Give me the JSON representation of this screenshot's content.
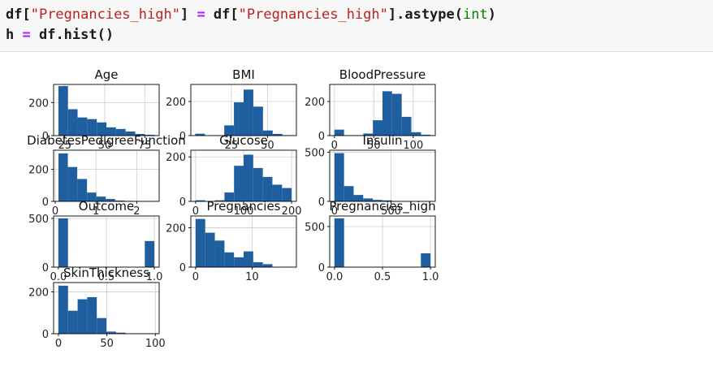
{
  "code_cell": {
    "line1": {
      "lhs_var": "df[",
      "lhs_key": "\"Pregnancies_high\"",
      "lhs_close": "]",
      "op": " = ",
      "rhs_var": "df[",
      "rhs_key": "\"Pregnancies_high\"",
      "rhs_close": "].astype(",
      "rhs_type": "int",
      "rhs_end": ")"
    },
    "line2": {
      "var": "h",
      "op": " = ",
      "call": "df.hist()"
    }
  },
  "colors": {
    "bar": "#1f5fa0",
    "grid": "#cccccc",
    "frame": "#000000"
  },
  "chart_data": [
    {
      "type": "bar",
      "title": "Age",
      "bins": [
        [
          21,
          27,
          300
        ],
        [
          27,
          33,
          160
        ],
        [
          33,
          39,
          110
        ],
        [
          39,
          45,
          100
        ],
        [
          45,
          51,
          80
        ],
        [
          51,
          57,
          50
        ],
        [
          57,
          63,
          40
        ],
        [
          63,
          69,
          25
        ],
        [
          69,
          75,
          10
        ],
        [
          75,
          81,
          5
        ]
      ],
      "xlim": [
        18,
        84
      ],
      "ylim": [
        0,
        310
      ],
      "xticks": [
        {
          "v": 25,
          "l": "25"
        },
        {
          "v": 50,
          "l": "50"
        },
        {
          "v": 75,
          "l": "75"
        }
      ],
      "yticks": [
        {
          "v": 0,
          "l": "0"
        },
        {
          "v": 200,
          "l": "200"
        }
      ]
    },
    {
      "type": "bar",
      "title": "BMI",
      "bins": [
        [
          0,
          6.7,
          11
        ],
        [
          6.7,
          13.4,
          0
        ],
        [
          13.4,
          20.1,
          2
        ],
        [
          20.1,
          26.8,
          60
        ],
        [
          26.8,
          33.5,
          195
        ],
        [
          33.5,
          40.2,
          270
        ],
        [
          40.2,
          46.9,
          170
        ],
        [
          46.9,
          53.6,
          30
        ],
        [
          53.6,
          60.3,
          10
        ],
        [
          60.3,
          67.1,
          2
        ]
      ],
      "xlim": [
        -3,
        70
      ],
      "ylim": [
        0,
        300
      ],
      "xticks": [
        {
          "v": 25,
          "l": "25"
        },
        {
          "v": 50,
          "l": "50"
        }
      ],
      "yticks": [
        {
          "v": 0,
          "l": "0"
        },
        {
          "v": 200,
          "l": "200"
        }
      ]
    },
    {
      "type": "bar",
      "title": "BloodPressure",
      "bins": [
        [
          0,
          12.2,
          35
        ],
        [
          12.2,
          24.4,
          1
        ],
        [
          24.4,
          36.6,
          2
        ],
        [
          36.6,
          48.8,
          12
        ],
        [
          48.8,
          61,
          90
        ],
        [
          61,
          73.2,
          260
        ],
        [
          73.2,
          85.4,
          245
        ],
        [
          85.4,
          97.6,
          110
        ],
        [
          97.6,
          109.8,
          20
        ],
        [
          109.8,
          122,
          5
        ]
      ],
      "xlim": [
        -6,
        128
      ],
      "ylim": [
        0,
        300
      ],
      "xticks": [
        {
          "v": 0,
          "l": "0"
        },
        {
          "v": 50,
          "l": "50"
        },
        {
          "v": 100,
          "l": "100"
        }
      ],
      "yticks": [
        {
          "v": 0,
          "l": "0"
        },
        {
          "v": 200,
          "l": "200"
        }
      ]
    },
    {
      "type": "bar",
      "title": "DiabetesPedigreeFunction",
      "bins": [
        [
          0.08,
          0.31,
          300
        ],
        [
          0.31,
          0.54,
          215
        ],
        [
          0.54,
          0.78,
          140
        ],
        [
          0.78,
          1.01,
          55
        ],
        [
          1.01,
          1.24,
          30
        ],
        [
          1.24,
          1.47,
          15
        ],
        [
          1.47,
          1.7,
          5
        ],
        [
          1.7,
          1.94,
          3
        ],
        [
          1.94,
          2.17,
          2
        ],
        [
          2.17,
          2.42,
          2
        ]
      ],
      "xlim": [
        -0.04,
        2.55
      ],
      "ylim": [
        0,
        320
      ],
      "xticks": [
        {
          "v": 0,
          "l": "0"
        },
        {
          "v": 1,
          "l": "1"
        },
        {
          "v": 2,
          "l": "2"
        }
      ],
      "yticks": [
        {
          "v": 0,
          "l": "0"
        },
        {
          "v": 200,
          "l": "200"
        }
      ]
    },
    {
      "type": "bar",
      "title": "Glucose",
      "bins": [
        [
          0,
          20,
          5
        ],
        [
          20,
          40,
          0
        ],
        [
          40,
          60,
          5
        ],
        [
          60,
          80,
          40
        ],
        [
          80,
          100,
          160
        ],
        [
          100,
          120,
          210
        ],
        [
          120,
          140,
          150
        ],
        [
          140,
          160,
          110
        ],
        [
          160,
          180,
          75
        ],
        [
          180,
          200,
          60
        ]
      ],
      "xlim": [
        -10,
        210
      ],
      "ylim": [
        0,
        230
      ],
      "xticks": [
        {
          "v": 0,
          "l": "0"
        },
        {
          "v": 100,
          "l": "100"
        },
        {
          "v": 200,
          "l": "200"
        }
      ],
      "yticks": [
        {
          "v": 0,
          "l": "0"
        },
        {
          "v": 200,
          "l": "200"
        }
      ]
    },
    {
      "type": "bar",
      "title": "Insulin",
      "bins": [
        [
          0,
          84.6,
          490
        ],
        [
          84.6,
          169.2,
          155
        ],
        [
          169.2,
          253.8,
          65
        ],
        [
          253.8,
          338.4,
          30
        ],
        [
          338.4,
          423,
          15
        ],
        [
          423,
          507.6,
          10
        ],
        [
          507.6,
          592.2,
          3
        ],
        [
          592.2,
          676.8,
          2
        ],
        [
          676.8,
          761.4,
          1
        ],
        [
          761.4,
          846,
          1
        ]
      ],
      "xlim": [
        -42,
        890
      ],
      "ylim": [
        0,
        520
      ],
      "xticks": [
        {
          "v": 0,
          "l": "0"
        },
        {
          "v": 500,
          "l": "500"
        }
      ],
      "yticks": [
        {
          "v": 0,
          "l": "0"
        },
        {
          "v": 500,
          "l": "500"
        }
      ]
    },
    {
      "type": "bar",
      "title": "Outcome",
      "bins": [
        [
          0,
          0.1,
          500
        ],
        [
          0.1,
          0.2,
          0
        ],
        [
          0.2,
          0.3,
          0
        ],
        [
          0.3,
          0.4,
          0
        ],
        [
          0.4,
          0.5,
          0
        ],
        [
          0.5,
          0.6,
          0
        ],
        [
          0.6,
          0.7,
          0
        ],
        [
          0.7,
          0.8,
          0
        ],
        [
          0.8,
          0.9,
          0
        ],
        [
          0.9,
          1,
          268
        ]
      ],
      "xlim": [
        -0.05,
        1.05
      ],
      "ylim": [
        0,
        525
      ],
      "xticks": [
        {
          "v": 0,
          "l": "0.0"
        },
        {
          "v": 0.5,
          "l": "0.5"
        },
        {
          "v": 1,
          "l": "1.0"
        }
      ],
      "yticks": [
        {
          "v": 0,
          "l": "0"
        },
        {
          "v": 500,
          "l": "500"
        }
      ]
    },
    {
      "type": "bar",
      "title": "Pregnancies",
      "bins": [
        [
          0,
          1.7,
          245
        ],
        [
          1.7,
          3.4,
          175
        ],
        [
          3.4,
          5.1,
          135
        ],
        [
          5.1,
          6.8,
          75
        ],
        [
          6.8,
          8.5,
          50
        ],
        [
          8.5,
          10.2,
          80
        ],
        [
          10.2,
          11.9,
          25
        ],
        [
          11.9,
          13.6,
          15
        ],
        [
          13.6,
          15.3,
          0
        ],
        [
          15.3,
          17,
          2
        ]
      ],
      "xlim": [
        -0.85,
        17.85
      ],
      "ylim": [
        0,
        260
      ],
      "xticks": [
        {
          "v": 0,
          "l": "0"
        },
        {
          "v": 10,
          "l": "10"
        }
      ],
      "yticks": [
        {
          "v": 0,
          "l": "0"
        },
        {
          "v": 200,
          "l": "200"
        }
      ]
    },
    {
      "type": "bar",
      "title": "Pregnancies_high",
      "bins": [
        [
          0,
          0.1,
          600
        ],
        [
          0.1,
          0.2,
          0
        ],
        [
          0.2,
          0.3,
          0
        ],
        [
          0.3,
          0.4,
          0
        ],
        [
          0.4,
          0.5,
          0
        ],
        [
          0.5,
          0.6,
          0
        ],
        [
          0.6,
          0.7,
          0
        ],
        [
          0.7,
          0.8,
          0
        ],
        [
          0.8,
          0.9,
          0
        ],
        [
          0.9,
          1,
          170
        ]
      ],
      "xlim": [
        -0.05,
        1.05
      ],
      "ylim": [
        0,
        630
      ],
      "xticks": [
        {
          "v": 0,
          "l": "0.0"
        },
        {
          "v": 0.5,
          "l": "0.5"
        },
        {
          "v": 1,
          "l": "1.0"
        }
      ],
      "yticks": [
        {
          "v": 0,
          "l": "0"
        },
        {
          "v": 500,
          "l": "500"
        }
      ]
    },
    {
      "type": "bar",
      "title": "SkinThickness",
      "bins": [
        [
          0,
          9.9,
          230
        ],
        [
          9.9,
          19.8,
          110
        ],
        [
          19.8,
          29.7,
          165
        ],
        [
          29.7,
          39.6,
          175
        ],
        [
          39.6,
          49.5,
          75
        ],
        [
          49.5,
          59.4,
          10
        ],
        [
          59.4,
          69.3,
          5
        ],
        [
          69.3,
          79.2,
          0
        ],
        [
          79.2,
          89.1,
          0
        ],
        [
          89.1,
          99,
          1
        ]
      ],
      "xlim": [
        -5,
        104
      ],
      "ylim": [
        0,
        245
      ],
      "xticks": [
        {
          "v": 0,
          "l": "0"
        },
        {
          "v": 50,
          "l": "50"
        },
        {
          "v": 100,
          "l": "100"
        }
      ],
      "yticks": [
        {
          "v": 0,
          "l": "0"
        },
        {
          "v": 200,
          "l": "200"
        }
      ]
    }
  ]
}
